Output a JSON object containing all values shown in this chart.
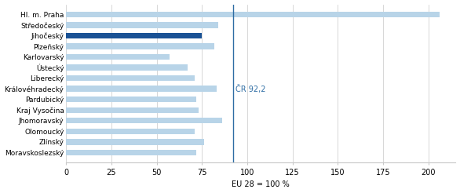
{
  "categories": [
    "Hl. m. Praha",
    "Středočeský",
    "Jihočeský",
    "Plzeňský",
    "Karlovarský",
    "Ústecký",
    "Liberecký",
    "Královéhradecký",
    "Pardubický",
    "Kraj Vysočina",
    "Jhomoravský",
    "Olomoucký",
    "Zlínský",
    "Moravskoslezský"
  ],
  "values": [
    206,
    84,
    75,
    82,
    57,
    67,
    71,
    83,
    72,
    73,
    86,
    71,
    76,
    72
  ],
  "light_bar_color": "#b8d4e8",
  "dark_bar_color": "#1a5295",
  "highlighted": "Jihočeský",
  "vline_x": 92.2,
  "vline_color": "#2e6da4",
  "annotation_text": "ČR 92,2",
  "annotation_color": "#2e6da4",
  "xlabel": "EU 28 = 100 %",
  "xlim": [
    0,
    215
  ],
  "xticks": [
    0,
    25,
    50,
    75,
    100,
    125,
    150,
    175,
    200
  ],
  "grid_color": "#c8c8c8",
  "background_color": "#ffffff",
  "bar_height": 0.55,
  "ylabel_fontsize": 6.5,
  "xlabel_fontsize": 7,
  "tick_fontsize": 7
}
